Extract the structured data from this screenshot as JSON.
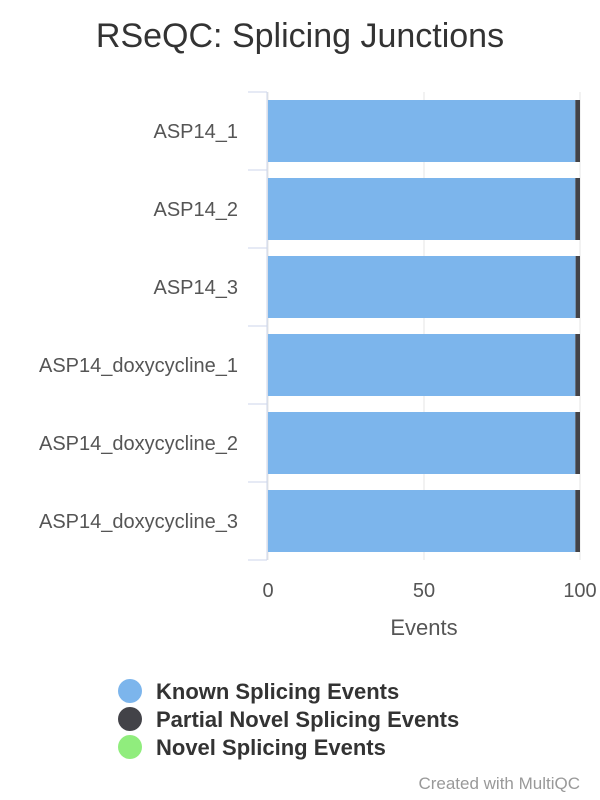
{
  "chart_data": {
    "type": "bar",
    "orientation": "horizontal",
    "stacked": true,
    "title": "RSeQC: Splicing Junctions",
    "xlabel": "Events",
    "ylabel": "",
    "categories": [
      "ASP14_1",
      "ASP14_2",
      "ASP14_3",
      "ASP14_doxycycline_1",
      "ASP14_doxycycline_2",
      "ASP14_doxycycline_3"
    ],
    "series": [
      {
        "name": "Known Splicing Events",
        "color": "#7cb5ec",
        "values": [
          98.5,
          98.5,
          98.6,
          98.5,
          98.5,
          98.5
        ]
      },
      {
        "name": "Partial Novel Splicing Events",
        "color": "#434348",
        "values": [
          1.5,
          1.5,
          1.4,
          1.5,
          1.5,
          1.5
        ]
      },
      {
        "name": "Novel Splicing Events",
        "color": "#90ed7d",
        "values": [
          0,
          0,
          0,
          0,
          0,
          0
        ]
      }
    ],
    "xlim": [
      0,
      100
    ],
    "xticks": [
      "0",
      "50",
      "100"
    ],
    "grid": true,
    "legend_position": "bottom"
  },
  "credit": "Created with MultiQC"
}
